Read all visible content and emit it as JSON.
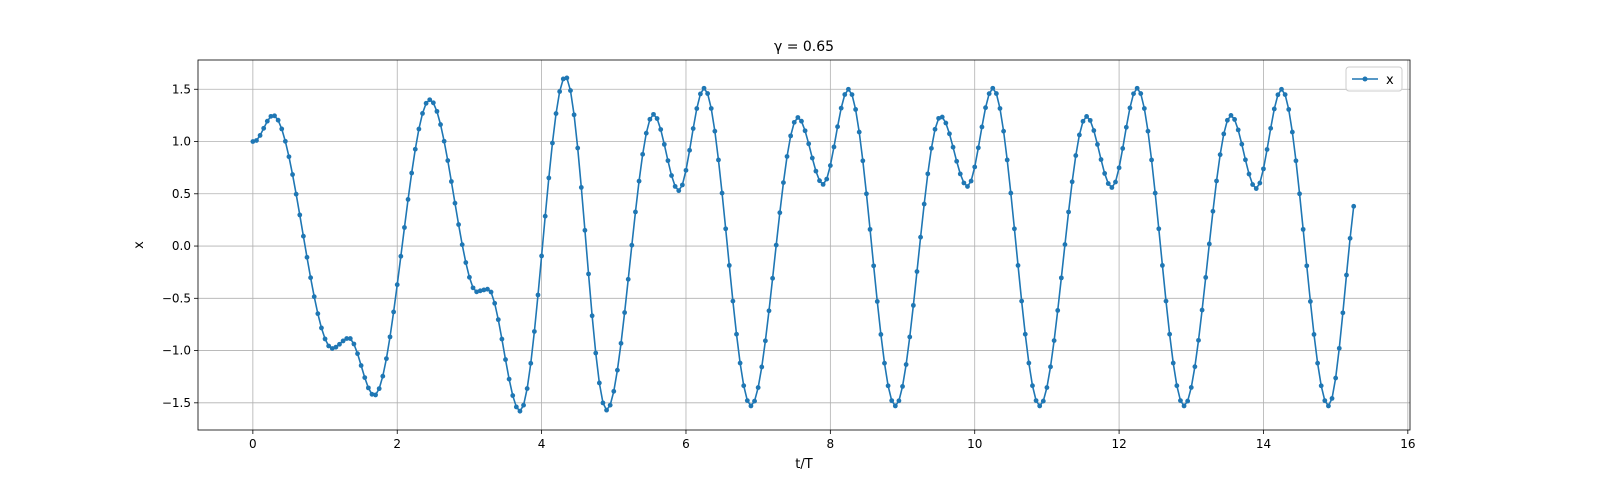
{
  "chart_data": {
    "type": "line",
    "title": "γ = 0.65",
    "xlabel": "t/T",
    "ylabel": "x",
    "xlim": [
      -0.76,
      16.03
    ],
    "ylim": [
      -1.76,
      1.78
    ],
    "xticks": [
      0,
      2,
      4,
      6,
      8,
      10,
      12,
      14,
      16
    ],
    "xtick_labels": [
      "0",
      "2",
      "4",
      "6",
      "8",
      "10",
      "12",
      "14",
      "16"
    ],
    "yticks": [
      -1.5,
      -1.0,
      -0.5,
      0.0,
      0.5,
      1.0,
      1.5
    ],
    "ytick_labels": [
      "−1.5",
      "−1.0",
      "−0.5",
      "0.0",
      "0.5",
      "1.0",
      "1.5"
    ],
    "grid": true,
    "legend_position": "upper right",
    "series": [
      {
        "name": "x",
        "color": "#1f77b4",
        "marker": "point",
        "x_start": 0,
        "x_step": 0.05,
        "x_end": 15.25,
        "keypoints": [
          [
            0.0,
            1.0
          ],
          [
            0.05,
            1.01
          ],
          [
            0.28,
            1.25
          ],
          [
            1.1,
            -0.98
          ],
          [
            1.33,
            -0.88
          ],
          [
            1.68,
            -1.43
          ],
          [
            2.45,
            1.4
          ],
          [
            3.05,
            -0.4
          ],
          [
            3.2,
            -0.42
          ],
          [
            3.3,
            -0.44
          ],
          [
            3.7,
            -1.58
          ],
          [
            4.33,
            1.62
          ],
          [
            4.9,
            -1.57
          ],
          [
            5.55,
            1.26
          ],
          [
            5.9,
            0.53
          ],
          [
            6.25,
            1.51
          ],
          [
            6.9,
            -1.53
          ],
          [
            7.55,
            1.23
          ],
          [
            7.9,
            0.59
          ],
          [
            8.25,
            1.5
          ],
          [
            8.9,
            -1.53
          ],
          [
            9.53,
            1.24
          ],
          [
            9.9,
            0.57
          ],
          [
            10.25,
            1.51
          ],
          [
            10.9,
            -1.53
          ],
          [
            11.55,
            1.24
          ],
          [
            11.9,
            0.56
          ],
          [
            12.25,
            1.51
          ],
          [
            12.9,
            -1.53
          ],
          [
            13.55,
            1.25
          ],
          [
            13.9,
            0.55
          ],
          [
            14.25,
            1.5
          ],
          [
            14.9,
            -1.53
          ],
          [
            15.25,
            0.38
          ]
        ]
      }
    ]
  }
}
